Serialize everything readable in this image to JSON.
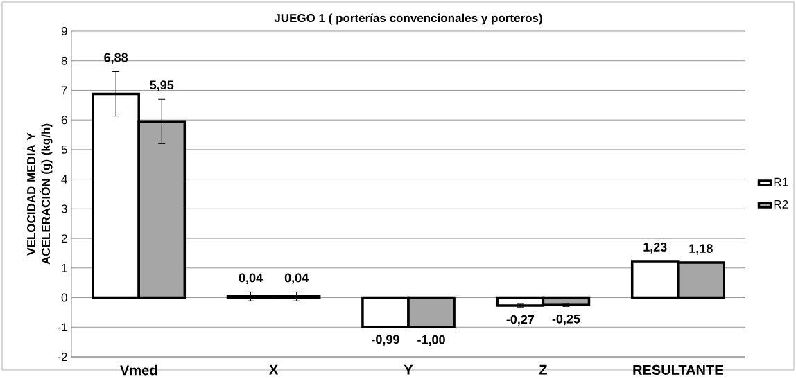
{
  "chart_data": {
    "type": "bar",
    "title": "JUEGO 1 ( porterías convencionales y porteros)",
    "ylabel": "VELOCIDAD MEDIA Y ACELERACIÓN (g) (kg/h)",
    "categories": [
      "Vmed",
      "X",
      "Y",
      "Z",
      "RESULTANTE"
    ],
    "series": [
      {
        "name": "R1",
        "color": "#ffffff",
        "values": [
          6.88,
          0.04,
          -0.99,
          -0.27,
          1.23
        ],
        "errors": [
          0.75,
          0.15,
          null,
          0.05,
          null
        ],
        "value_labels": [
          "6,88",
          "0,04",
          "-0,99",
          "-0,27",
          "1,23"
        ]
      },
      {
        "name": "R2",
        "color": "#a6a6a6",
        "values": [
          5.95,
          0.04,
          -1.0,
          -0.25,
          1.18
        ],
        "errors": [
          0.75,
          0.15,
          null,
          0.05,
          null
        ],
        "value_labels": [
          "5,95",
          "0,04",
          "-1,00",
          "-0,25",
          "1,18"
        ]
      }
    ],
    "ylim": [
      -2,
      9
    ],
    "yticks": [
      -2,
      -1,
      0,
      1,
      2,
      3,
      4,
      5,
      6,
      7,
      8,
      9
    ],
    "grid": "y",
    "legend": "right"
  }
}
